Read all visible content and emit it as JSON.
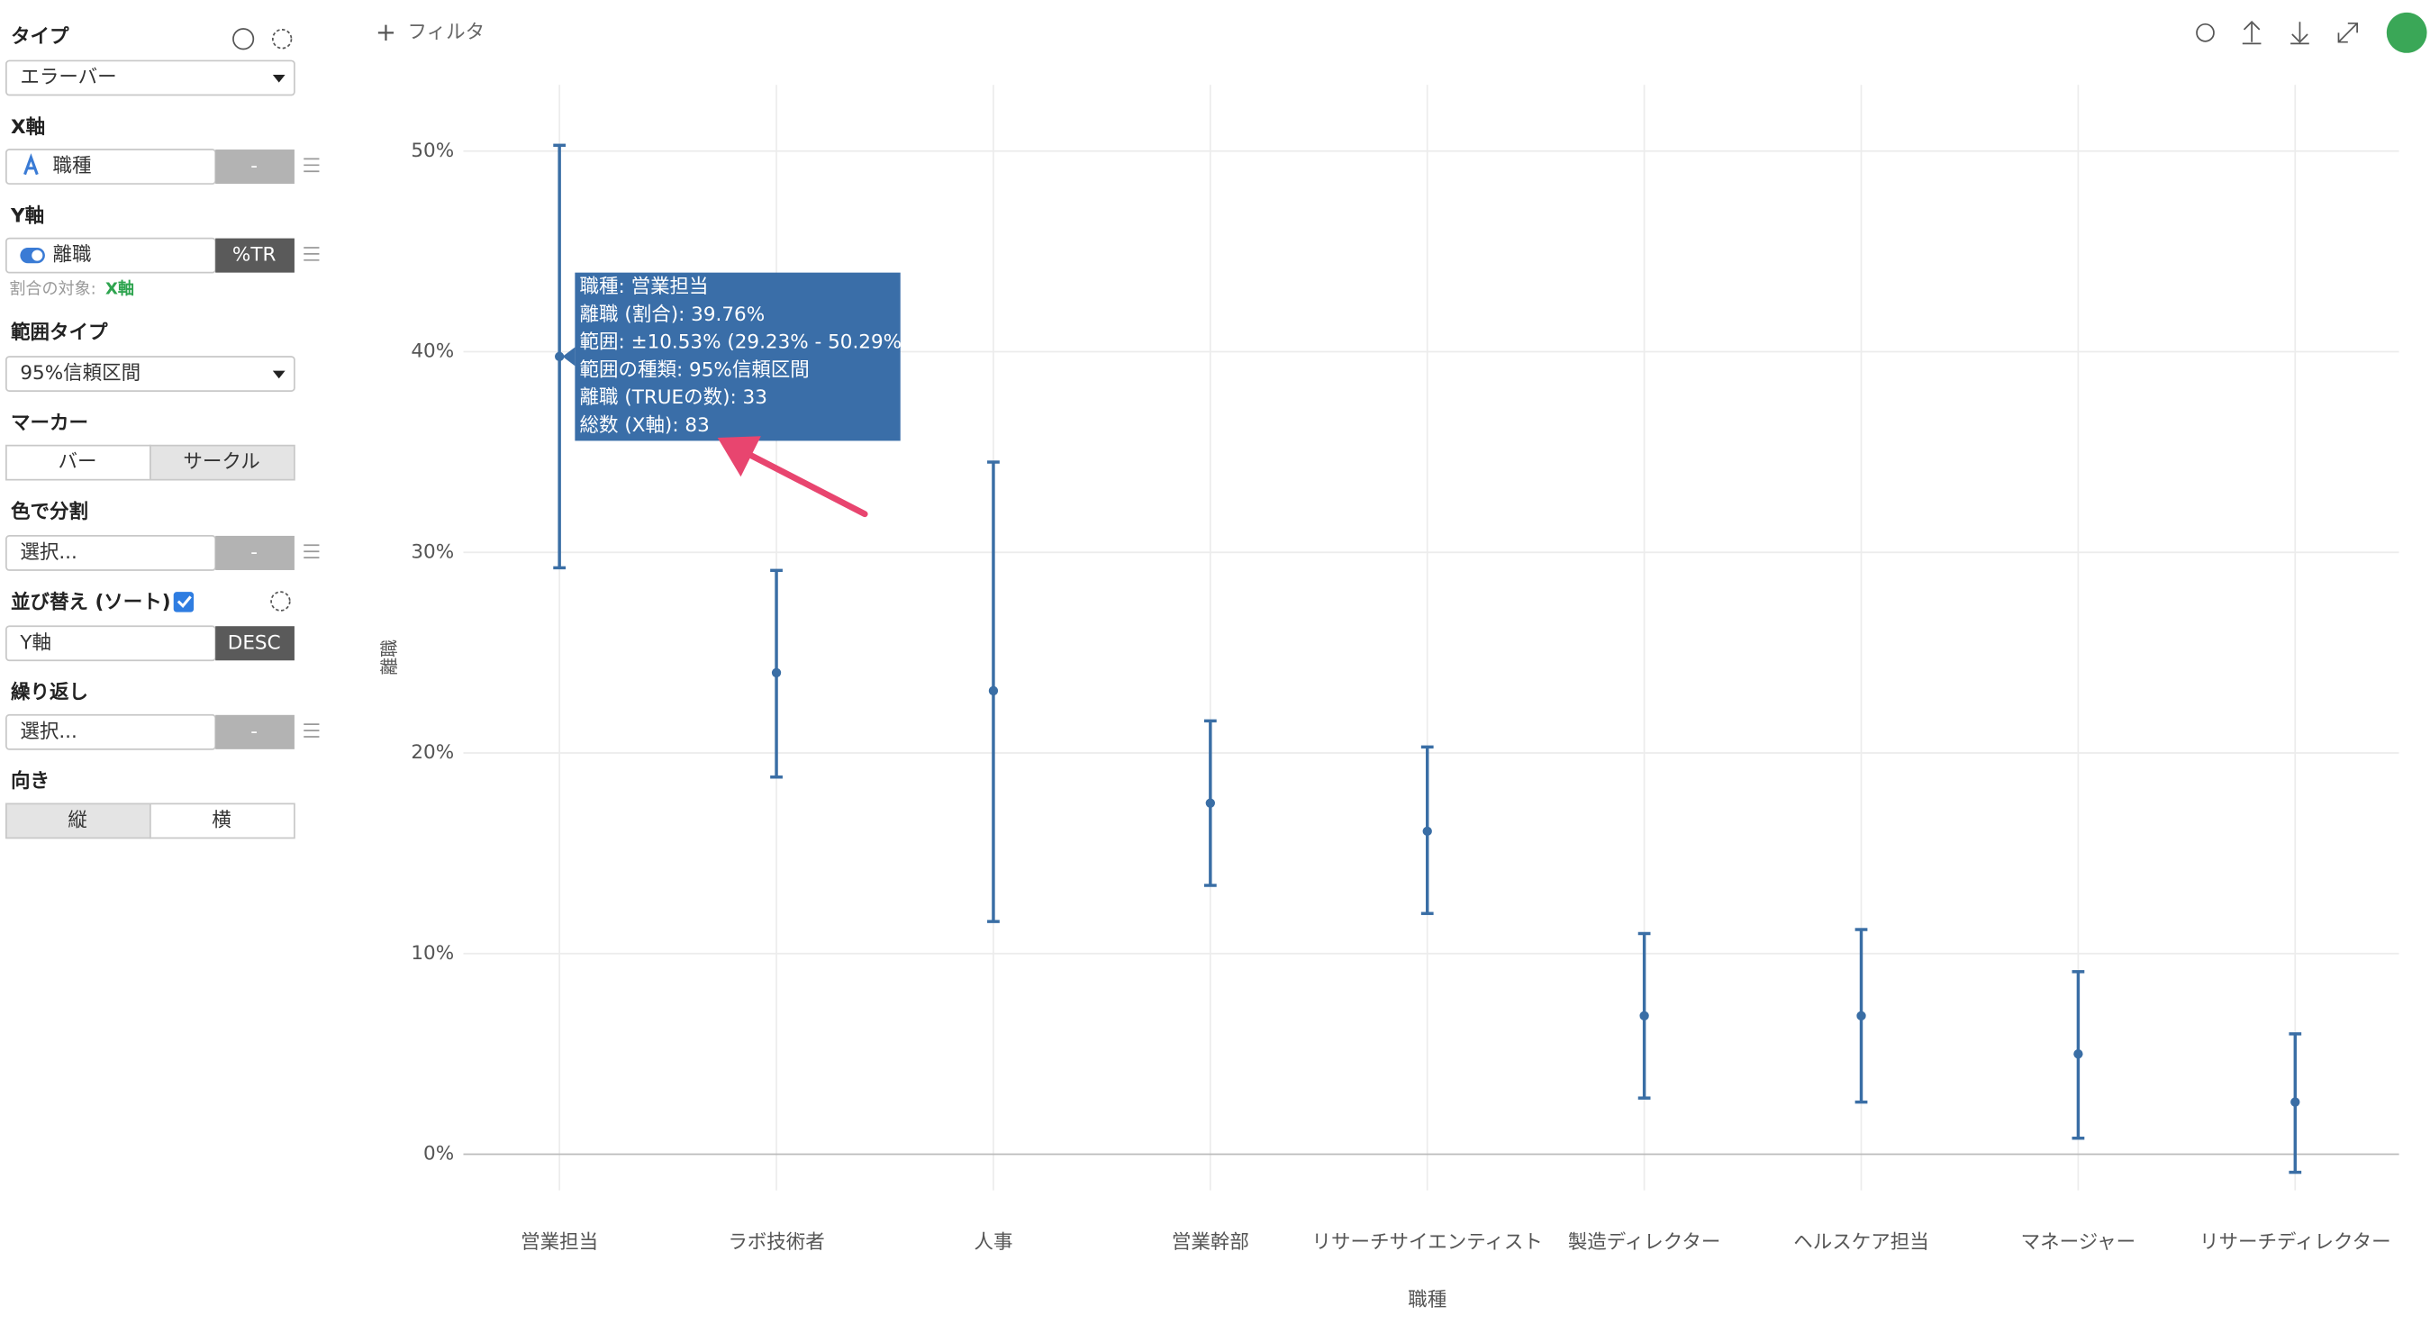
{
  "sidebar": {
    "type_label": "タイプ",
    "type_value": "エラーバー",
    "x_label": "X軸",
    "x_value": "職種",
    "x_btn": "-",
    "y_label": "Y軸",
    "y_value": "離職",
    "y_btn": "%TR",
    "ratio_note": "割合の対象:",
    "ratio_target": "X軸",
    "range_label": "範囲タイプ",
    "range_value": "95%信頼区間",
    "marker_label": "マーカー",
    "marker_options": [
      "バー",
      "サークル"
    ],
    "color_label": "色で分割",
    "color_value": "選択...",
    "color_btn": "-",
    "sort_label": "並び替え (ソート)",
    "sort_value": "Y軸",
    "sort_btn": "DESC",
    "repeat_label": "繰り返し",
    "repeat_value": "選択...",
    "repeat_btn": "-",
    "orientation_label": "向き",
    "orientation_options": [
      "縦",
      "横"
    ]
  },
  "toolbar": {
    "filter": "フィルタ"
  },
  "chart_data": {
    "type": "errorbar",
    "x_label": "職種",
    "y_label": "離職",
    "categories": [
      "営業担当",
      "ラボ技術者",
      "人事",
      "営業幹部",
      "リサーチサイエンティスト",
      "製造ディレクター",
      "ヘルスケア担当",
      "マネージャー",
      "リサーチディレクター"
    ],
    "values": [
      39.76,
      24.0,
      23.1,
      17.5,
      16.1,
      6.9,
      6.9,
      5.0,
      2.6
    ],
    "error_low": [
      29.23,
      18.8,
      11.6,
      13.4,
      12.0,
      2.8,
      2.6,
      0.8,
      -0.9
    ],
    "error_high": [
      50.29,
      29.1,
      34.5,
      21.6,
      20.3,
      11.0,
      11.2,
      9.1,
      6.0
    ],
    "color": "#3a6ea5",
    "ylim": [
      -1.8,
      53.3
    ],
    "yticks": [
      {
        "value": 0,
        "label": "0%"
      },
      {
        "value": 10,
        "label": "10%"
      },
      {
        "value": 20,
        "label": "20%"
      },
      {
        "value": 30,
        "label": "30%"
      },
      {
        "value": 40,
        "label": "40%"
      },
      {
        "value": 50,
        "label": "50%"
      }
    ],
    "grid": true,
    "tooltip": [
      "職種: 営業担当",
      "離職 (割合): 39.76%",
      "範囲: ±10.53% (29.23% - 50.29%)",
      "範囲の種類: 95%信頼区間",
      "離職 (TRUEの数): 33",
      "総数 (X軸): 83"
    ]
  }
}
